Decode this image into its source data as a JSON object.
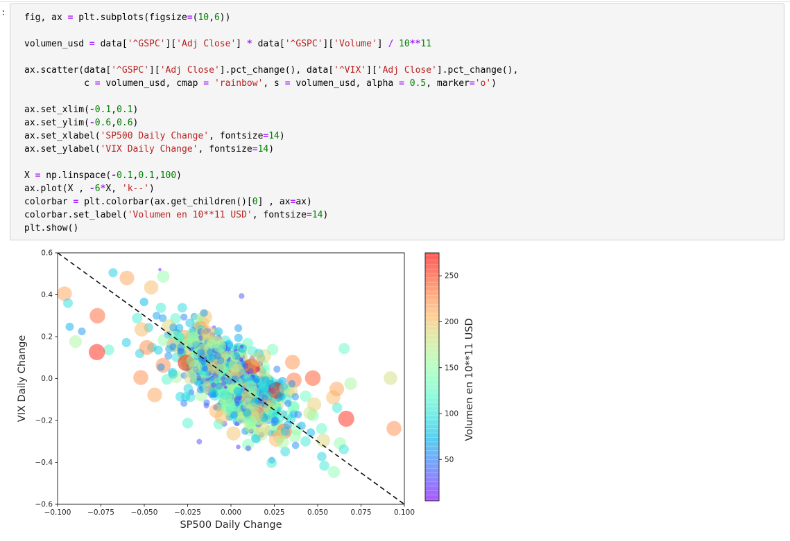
{
  "cell": {
    "prompt_tail": ":",
    "bg_color": "#f5f5f5",
    "border_color": "#cfcfcf",
    "syntax_colors": {
      "operator": "#AA22FF",
      "number": "#008000",
      "string": "#BA2121",
      "plain": "#000000"
    },
    "code_lines": [
      [
        [
          "p",
          "fig, ax "
        ],
        [
          "o",
          "="
        ],
        [
          "p",
          " plt.subplots(figsize"
        ],
        [
          "o",
          "="
        ],
        [
          "p",
          "("
        ],
        [
          "n",
          "10"
        ],
        [
          "p",
          ","
        ],
        [
          "n",
          "6"
        ],
        [
          "p",
          "))"
        ]
      ],
      [],
      [
        [
          "p",
          "volumen_usd "
        ],
        [
          "o",
          "="
        ],
        [
          "p",
          " data["
        ],
        [
          "s",
          "'^GSPC'"
        ],
        [
          "p",
          "]["
        ],
        [
          "s",
          "'Adj Close'"
        ],
        [
          "p",
          "] "
        ],
        [
          "o",
          "*"
        ],
        [
          "p",
          " data["
        ],
        [
          "s",
          "'^GSPC'"
        ],
        [
          "p",
          "]["
        ],
        [
          "s",
          "'Volume'"
        ],
        [
          "p",
          "] "
        ],
        [
          "o",
          "/"
        ],
        [
          "p",
          " "
        ],
        [
          "n",
          "10"
        ],
        [
          "o",
          "**"
        ],
        [
          "n",
          "11"
        ]
      ],
      [],
      [
        [
          "p",
          "ax.scatter(data["
        ],
        [
          "s",
          "'^GSPC'"
        ],
        [
          "p",
          "]["
        ],
        [
          "s",
          "'Adj Close'"
        ],
        [
          "p",
          "].pct_change(), data["
        ],
        [
          "s",
          "'^VIX'"
        ],
        [
          "p",
          "]["
        ],
        [
          "s",
          "'Adj Close'"
        ],
        [
          "p",
          "].pct_change(),"
        ]
      ],
      [
        [
          "p",
          "           c "
        ],
        [
          "o",
          "="
        ],
        [
          "p",
          " volumen_usd, cmap "
        ],
        [
          "o",
          "="
        ],
        [
          "p",
          " "
        ],
        [
          "s",
          "'rainbow'"
        ],
        [
          "p",
          ", s "
        ],
        [
          "o",
          "="
        ],
        [
          "p",
          " volumen_usd, alpha "
        ],
        [
          "o",
          "="
        ],
        [
          "p",
          " "
        ],
        [
          "n",
          "0.5"
        ],
        [
          "p",
          ", marker"
        ],
        [
          "o",
          "="
        ],
        [
          "s",
          "'o'"
        ],
        [
          "p",
          ")"
        ]
      ],
      [],
      [
        [
          "p",
          "ax.set_xlim("
        ],
        [
          "o",
          "-"
        ],
        [
          "n",
          "0.1"
        ],
        [
          "p",
          ","
        ],
        [
          "n",
          "0.1"
        ],
        [
          "p",
          ")"
        ]
      ],
      [
        [
          "p",
          "ax.set_ylim("
        ],
        [
          "o",
          "-"
        ],
        [
          "n",
          "0.6"
        ],
        [
          "p",
          ","
        ],
        [
          "n",
          "0.6"
        ],
        [
          "p",
          ")"
        ]
      ],
      [
        [
          "p",
          "ax.set_xlabel("
        ],
        [
          "s",
          "'SP500 Daily Change'"
        ],
        [
          "p",
          ", fontsize"
        ],
        [
          "o",
          "="
        ],
        [
          "n",
          "14"
        ],
        [
          "p",
          ")"
        ]
      ],
      [
        [
          "p",
          "ax.set_ylabel("
        ],
        [
          "s",
          "'VIX Daily Change'"
        ],
        [
          "p",
          ", fontsize"
        ],
        [
          "o",
          "="
        ],
        [
          "n",
          "14"
        ],
        [
          "p",
          ")"
        ]
      ],
      [],
      [
        [
          "p",
          "X "
        ],
        [
          "o",
          "="
        ],
        [
          "p",
          " np.linspace("
        ],
        [
          "o",
          "-"
        ],
        [
          "n",
          "0.1"
        ],
        [
          "p",
          ","
        ],
        [
          "n",
          "0.1"
        ],
        [
          "p",
          ","
        ],
        [
          "n",
          "100"
        ],
        [
          "p",
          ")"
        ]
      ],
      [
        [
          "p",
          "ax.plot(X , "
        ],
        [
          "o",
          "-"
        ],
        [
          "n",
          "6"
        ],
        [
          "o",
          "*"
        ],
        [
          "p",
          "X, "
        ],
        [
          "s",
          "'k--'"
        ],
        [
          "p",
          ")"
        ]
      ],
      [
        [
          "p",
          "colorbar "
        ],
        [
          "o",
          "="
        ],
        [
          "p",
          " plt.colorbar(ax.get_children()["
        ],
        [
          "n",
          "0"
        ],
        [
          "p",
          "] , ax"
        ],
        [
          "o",
          "="
        ],
        [
          "p",
          "ax)"
        ]
      ],
      [
        [
          "p",
          "colorbar.set_label("
        ],
        [
          "s",
          "'Volumen en 10**11 USD'"
        ],
        [
          "p",
          ", fontsize"
        ],
        [
          "o",
          "="
        ],
        [
          "n",
          "14"
        ],
        [
          "p",
          ")"
        ]
      ],
      [
        [
          "p",
          "plt.show()"
        ]
      ]
    ]
  },
  "chart_data": {
    "type": "scatter",
    "xlabel": "SP500 Daily Change",
    "ylabel": "VIX Daily Change",
    "xlim": [
      -0.1,
      0.1
    ],
    "ylim": [
      -0.6,
      0.6
    ],
    "x_ticks": [
      -0.1,
      -0.075,
      -0.05,
      -0.025,
      0.0,
      0.025,
      0.05,
      0.075,
      0.1
    ],
    "x_tick_labels": [
      "−0.100",
      "−0.075",
      "−0.050",
      "−0.025",
      "0.000",
      "0.025",
      "0.050",
      "0.075",
      "0.100"
    ],
    "y_ticks": [
      0.6,
      0.4,
      0.2,
      0.0,
      -0.2,
      -0.4,
      -0.6
    ],
    "y_tick_labels": [
      "0.6",
      "0.4",
      "0.2",
      "0.0",
      "−0.2",
      "−0.4",
      "−0.6"
    ],
    "grid": false,
    "marker_alpha": 0.5,
    "colormap": "rainbow",
    "trend_line": {
      "style": "k--",
      "slope": -6,
      "from": [
        -0.1,
        0.6
      ],
      "to": [
        0.1,
        -0.6
      ]
    },
    "colorbar": {
      "label": "Volumen en 10**11 USD",
      "ticks": [
        50,
        100,
        150,
        200,
        250
      ],
      "tick_labels": [
        "50",
        "100",
        "150",
        "200",
        "250"
      ],
      "vmin": 5,
      "vmax": 275
    },
    "cluster_generator": {
      "seed": 1337,
      "n_core": 880,
      "n_halo": 250,
      "core": {
        "x_mean": 0.001,
        "x_sd": 0.0125,
        "slope": -6,
        "y_noise_sd": 0.075
      },
      "halo": {
        "x_mean": 0.0,
        "x_sd": 0.027,
        "slope": -3.6,
        "y_noise_sd": 0.13
      },
      "volume": {
        "base": 6,
        "rand_scale": 195,
        "rand_pow": 1.9,
        "abs_x_scale": 1300,
        "min": 6,
        "max": 275
      }
    },
    "highlight_points": [
      {
        "x": -0.096,
        "y": 0.405,
        "v": 215
      },
      {
        "x": -0.077,
        "y": 0.3,
        "v": 240
      },
      {
        "x": -0.06,
        "y": 0.48,
        "v": 215
      },
      {
        "x": -0.046,
        "y": 0.435,
        "v": 205
      },
      {
        "x": -0.094,
        "y": 0.36,
        "v": 95
      },
      {
        "x": -0.093,
        "y": 0.247,
        "v": 70
      },
      {
        "x": -0.086,
        "y": 0.225,
        "v": 60
      },
      {
        "x": -0.068,
        "y": 0.505,
        "v": 85
      },
      {
        "x": -0.052,
        "y": 0.005,
        "v": 225
      },
      {
        "x": -0.044,
        "y": -0.078,
        "v": 215
      },
      {
        "x": -0.041,
        "y": 0.52,
        "v": 10
      },
      {
        "x": -0.039,
        "y": 0.487,
        "v": 150
      },
      {
        "x": -0.036,
        "y": 0.25,
        "v": 190
      },
      {
        "x": -0.026,
        "y": 0.075,
        "v": 268
      },
      {
        "x": -0.013,
        "y": 0.12,
        "v": 225
      },
      {
        "x": 0.008,
        "y": -0.04,
        "v": 210
      },
      {
        "x": 0.012,
        "y": 0.058,
        "v": 265
      },
      {
        "x": 0.026,
        "y": -0.057,
        "v": 272
      },
      {
        "x": 0.043,
        "y": -0.3,
        "v": 105
      },
      {
        "x": 0.046,
        "y": -0.258,
        "v": 75
      },
      {
        "x": 0.048,
        "y": -0.123,
        "v": 195
      },
      {
        "x": 0.0455,
        "y": -0.165,
        "v": 175
      },
      {
        "x": 0.059,
        "y": -0.09,
        "v": 205
      },
      {
        "x": 0.061,
        "y": -0.05,
        "v": 215
      },
      {
        "x": 0.069,
        "y": -0.024,
        "v": 160
      },
      {
        "x": 0.092,
        "y": 0.002,
        "v": 185
      },
      {
        "x": 0.094,
        "y": -0.238,
        "v": 225
      }
    ]
  }
}
